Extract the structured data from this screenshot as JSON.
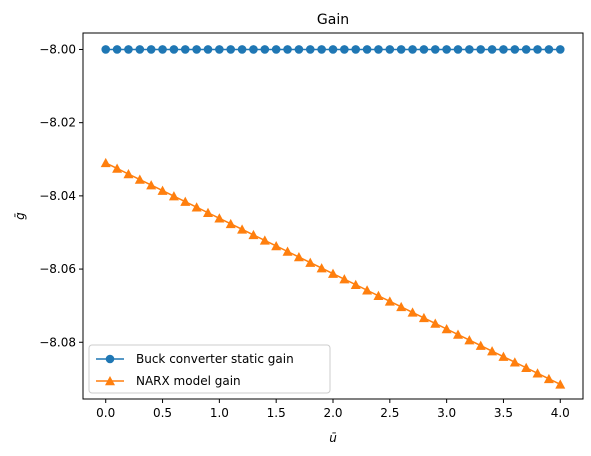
{
  "chart_data": {
    "type": "line",
    "title": "Gain",
    "xlabel": "ū",
    "ylabel": "ḡ",
    "xlim": [
      -0.2,
      4.2
    ],
    "ylim": [
      -8.0955,
      -7.9955
    ],
    "xticks": [
      "0.0",
      "0.5",
      "1.0",
      "1.5",
      "2.0",
      "2.5",
      "3.0",
      "3.5",
      "4.0"
    ],
    "xtick_values": [
      0,
      0.5,
      1.0,
      1.5,
      2.0,
      2.5,
      3.0,
      3.5,
      4.0
    ],
    "yticks": [
      "−8.00",
      "−8.02",
      "−8.04",
      "−8.06",
      "−8.08"
    ],
    "ytick_values": [
      -8.0,
      -8.02,
      -8.04,
      -8.06,
      -8.08
    ],
    "grid": false,
    "legend_position": "lower-left",
    "series": [
      {
        "name": "Buck converter static gain",
        "marker": "circle",
        "color": "#1f77b4",
        "x_start": 0.0,
        "x_end": 4.0,
        "n": 41,
        "y_start": -8.0,
        "y_end": -8.0
      },
      {
        "name": "NARX model gain",
        "marker": "triangle",
        "color": "#ff7f0e",
        "x_start": 0.0,
        "x_end": 4.0,
        "n": 41,
        "y_start": -8.031,
        "y_end": -8.0915
      }
    ]
  }
}
